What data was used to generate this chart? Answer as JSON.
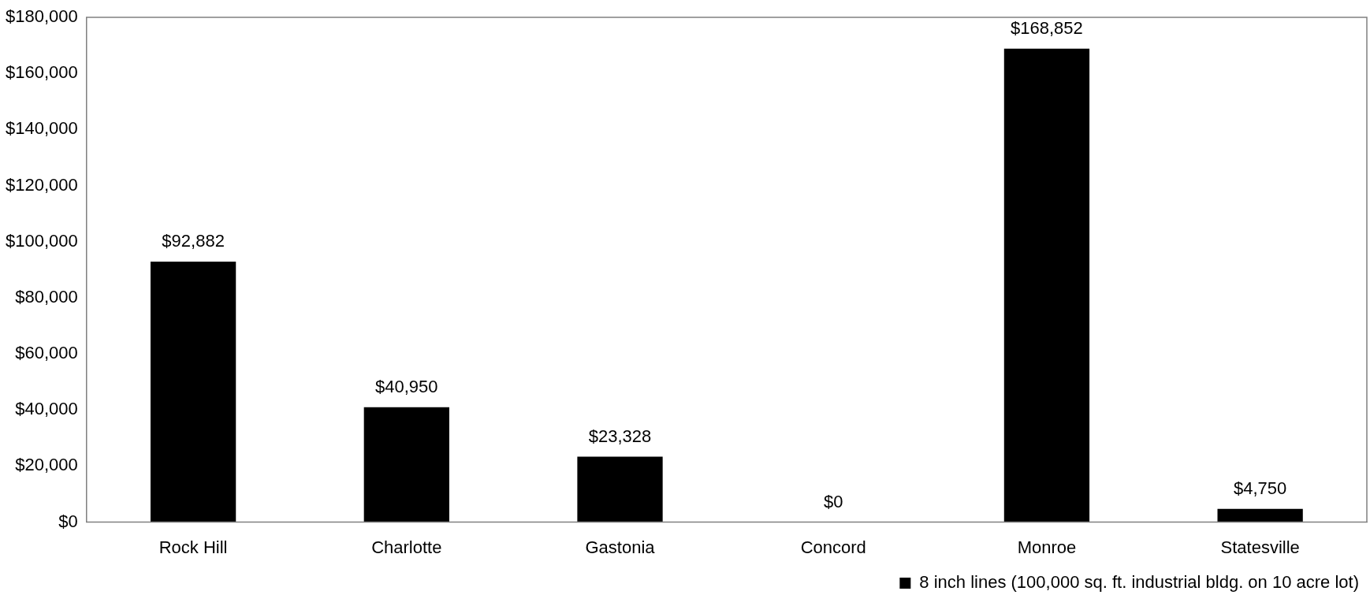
{
  "chart_data": {
    "type": "bar",
    "categories": [
      "Rock Hill",
      "Charlotte",
      "Gastonia",
      "Concord",
      "Monroe",
      "Statesville"
    ],
    "series": [
      {
        "name": "8 inch lines (100,000 sq. ft. industrial bldg. on 10 acre lot)",
        "color": "#000000",
        "values": [
          92882,
          40950,
          23328,
          0,
          168852,
          4750
        ],
        "value_labels": [
          "$92,882",
          "$40,950",
          "$23,328",
          "$0",
          "$168,852",
          "$4,750"
        ]
      }
    ],
    "ylim": [
      0,
      180000
    ],
    "yticks": [
      {
        "value": 0,
        "label": "$0"
      },
      {
        "value": 20000,
        "label": "$20,000"
      },
      {
        "value": 40000,
        "label": "$40,000"
      },
      {
        "value": 60000,
        "label": "$60,000"
      },
      {
        "value": 80000,
        "label": "$80,000"
      },
      {
        "value": 100000,
        "label": "$100,000"
      },
      {
        "value": 120000,
        "label": "$120,000"
      },
      {
        "value": 140000,
        "label": "$140,000"
      },
      {
        "value": 160000,
        "label": "$160,000"
      },
      {
        "value": 180000,
        "label": "$180,000"
      }
    ],
    "legend": "bottom right"
  }
}
